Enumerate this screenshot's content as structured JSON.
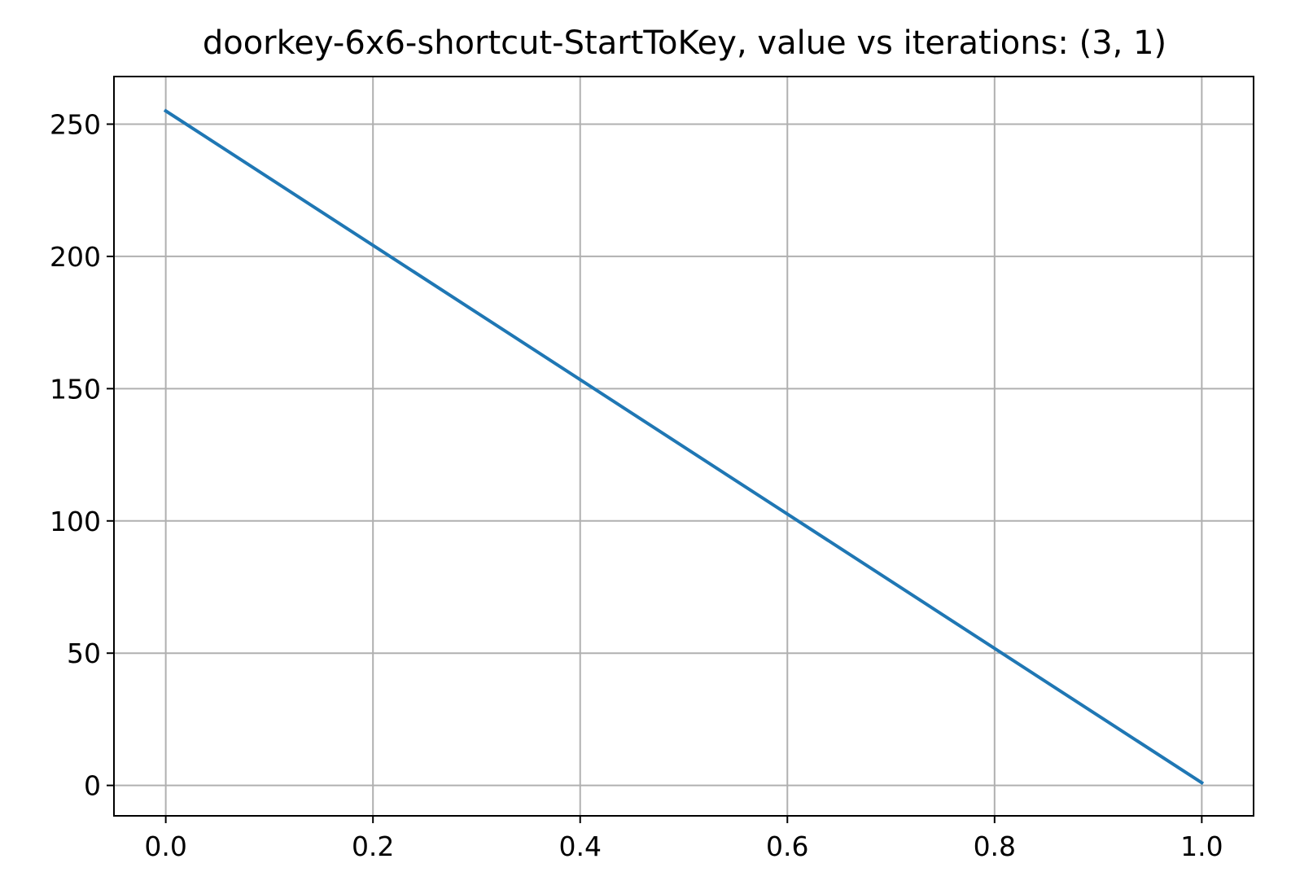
{
  "chart_data": {
    "type": "line",
    "title": "doorkey-6x6-shortcut-StartToKey, value vs iterations: (3, 1)",
    "xlabel": "",
    "ylabel": "",
    "xlim": [
      -0.05,
      1.05
    ],
    "ylim": [
      -11.5,
      268
    ],
    "grid": true,
    "legend": "none",
    "x_ticks": [
      0.0,
      0.2,
      0.4,
      0.6,
      0.8,
      1.0
    ],
    "x_tick_labels": [
      "0.0",
      "0.2",
      "0.4",
      "0.6",
      "0.8",
      "1.0"
    ],
    "y_ticks": [
      0,
      50,
      100,
      150,
      200,
      250
    ],
    "y_tick_labels": [
      "0",
      "50",
      "100",
      "150",
      "200",
      "250"
    ],
    "series": [
      {
        "color": "#1f77b4",
        "x": [
          0.0,
          1.0
        ],
        "y": [
          255,
          1
        ]
      }
    ],
    "colors": {
      "grid": "#b0b0b0",
      "axes": "#000000"
    }
  }
}
